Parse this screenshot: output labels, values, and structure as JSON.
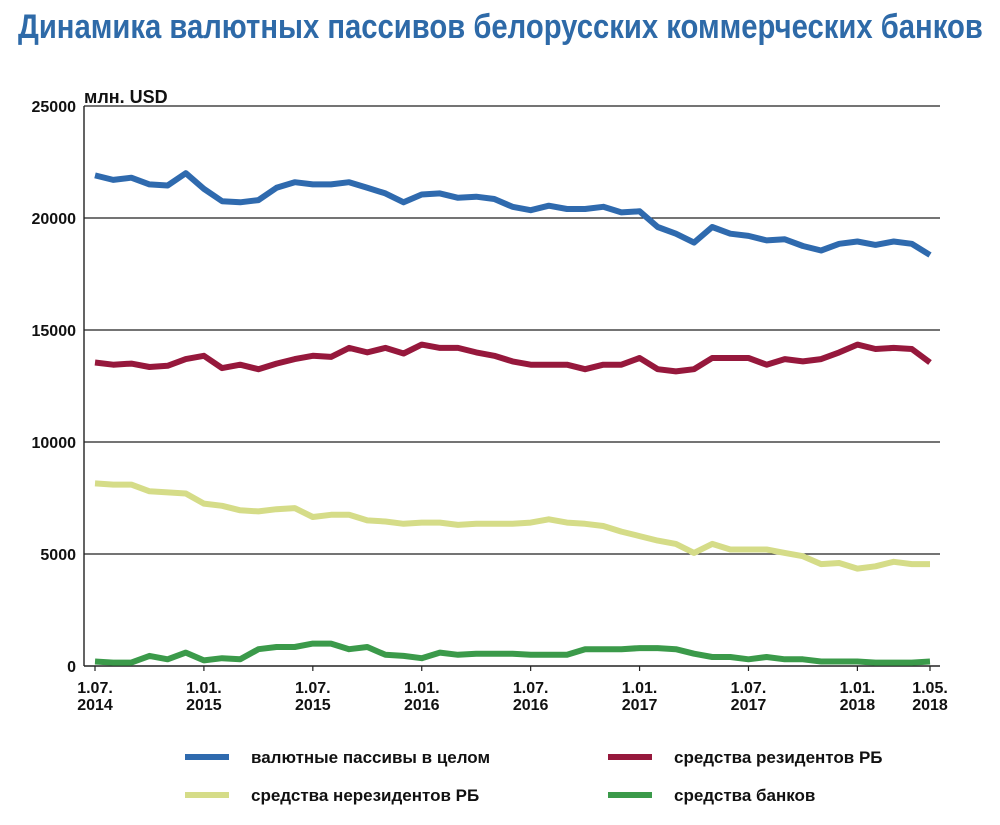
{
  "chart_data": {
    "type": "line",
    "title": "Динамика валютных пассивов белорусских коммерческих банков",
    "ylabel": "млн. USD",
    "xlabel": "",
    "ylim": [
      0,
      25000
    ],
    "yticks": [
      0,
      5000,
      10000,
      15000,
      20000,
      25000
    ],
    "grid": true,
    "legend_position": "bottom",
    "x_start": "1.07.2014",
    "x_end": "1.05.2018",
    "x_tick_labels": [
      {
        "index": 0,
        "line1": "1.07.",
        "line2": "2014"
      },
      {
        "index": 6,
        "line1": "1.01.",
        "line2": "2015"
      },
      {
        "index": 12,
        "line1": "1.07.",
        "line2": "2015"
      },
      {
        "index": 18,
        "line1": "1.01.",
        "line2": "2016"
      },
      {
        "index": 24,
        "line1": "1.07.",
        "line2": "2016"
      },
      {
        "index": 30,
        "line1": "1.01.",
        "line2": "2017"
      },
      {
        "index": 36,
        "line1": "1.07.",
        "line2": "2017"
      },
      {
        "index": 42,
        "line1": "1.01.",
        "line2": "2018"
      },
      {
        "index": 46,
        "line1": "1.05.",
        "line2": "2018"
      }
    ],
    "series": [
      {
        "name": "валютные пассивы в целом",
        "color": "#2f6aae",
        "values": [
          21900,
          21700,
          21800,
          21500,
          21450,
          22000,
          21300,
          20750,
          20700,
          20800,
          21350,
          21600,
          21500,
          21500,
          21600,
          21350,
          21100,
          20700,
          21050,
          21100,
          20900,
          20950,
          20850,
          20500,
          20350,
          20550,
          20400,
          20400,
          20500,
          20250,
          20300,
          19600,
          19300,
          18900,
          19600,
          19300,
          19200,
          19000,
          19050,
          18750,
          18550,
          18850,
          18950,
          18800,
          18950,
          18850,
          18350
        ]
      },
      {
        "name": "средства резидентов РБ",
        "color": "#96183c",
        "values": [
          13550,
          13450,
          13500,
          13350,
          13400,
          13700,
          13850,
          13300,
          13450,
          13250,
          13500,
          13700,
          13850,
          13800,
          14200,
          14000,
          14200,
          13950,
          14350,
          14200,
          14200,
          14000,
          13850,
          13600,
          13450,
          13450,
          13450,
          13250,
          13450,
          13450,
          13750,
          13250,
          13150,
          13250,
          13750,
          13750,
          13750,
          13450,
          13700,
          13600,
          13700,
          14000,
          14350,
          14150,
          14200,
          14150,
          13550
        ]
      },
      {
        "name": "средства нерезидентов РБ",
        "color": "#d5dc88",
        "values": [
          8150,
          8100,
          8100,
          7800,
          7750,
          7700,
          7250,
          7150,
          6950,
          6900,
          7000,
          7050,
          6650,
          6750,
          6750,
          6500,
          6450,
          6350,
          6400,
          6400,
          6300,
          6350,
          6350,
          6350,
          6400,
          6550,
          6400,
          6350,
          6250,
          6000,
          5800,
          5600,
          5450,
          5050,
          5450,
          5200,
          5200,
          5200,
          5050,
          4900,
          4550,
          4600,
          4350,
          4450,
          4650,
          4550,
          4550
        ]
      },
      {
        "name": "средства банков",
        "color": "#3b9a4a",
        "values": [
          200,
          150,
          150,
          450,
          300,
          600,
          250,
          350,
          300,
          750,
          850,
          850,
          1000,
          1000,
          750,
          850,
          500,
          450,
          350,
          600,
          500,
          550,
          550,
          550,
          500,
          500,
          500,
          750,
          750,
          750,
          800,
          800,
          750,
          550,
          400,
          400,
          300,
          400,
          300,
          300,
          200,
          200,
          200,
          150,
          150,
          150,
          200
        ]
      }
    ]
  }
}
